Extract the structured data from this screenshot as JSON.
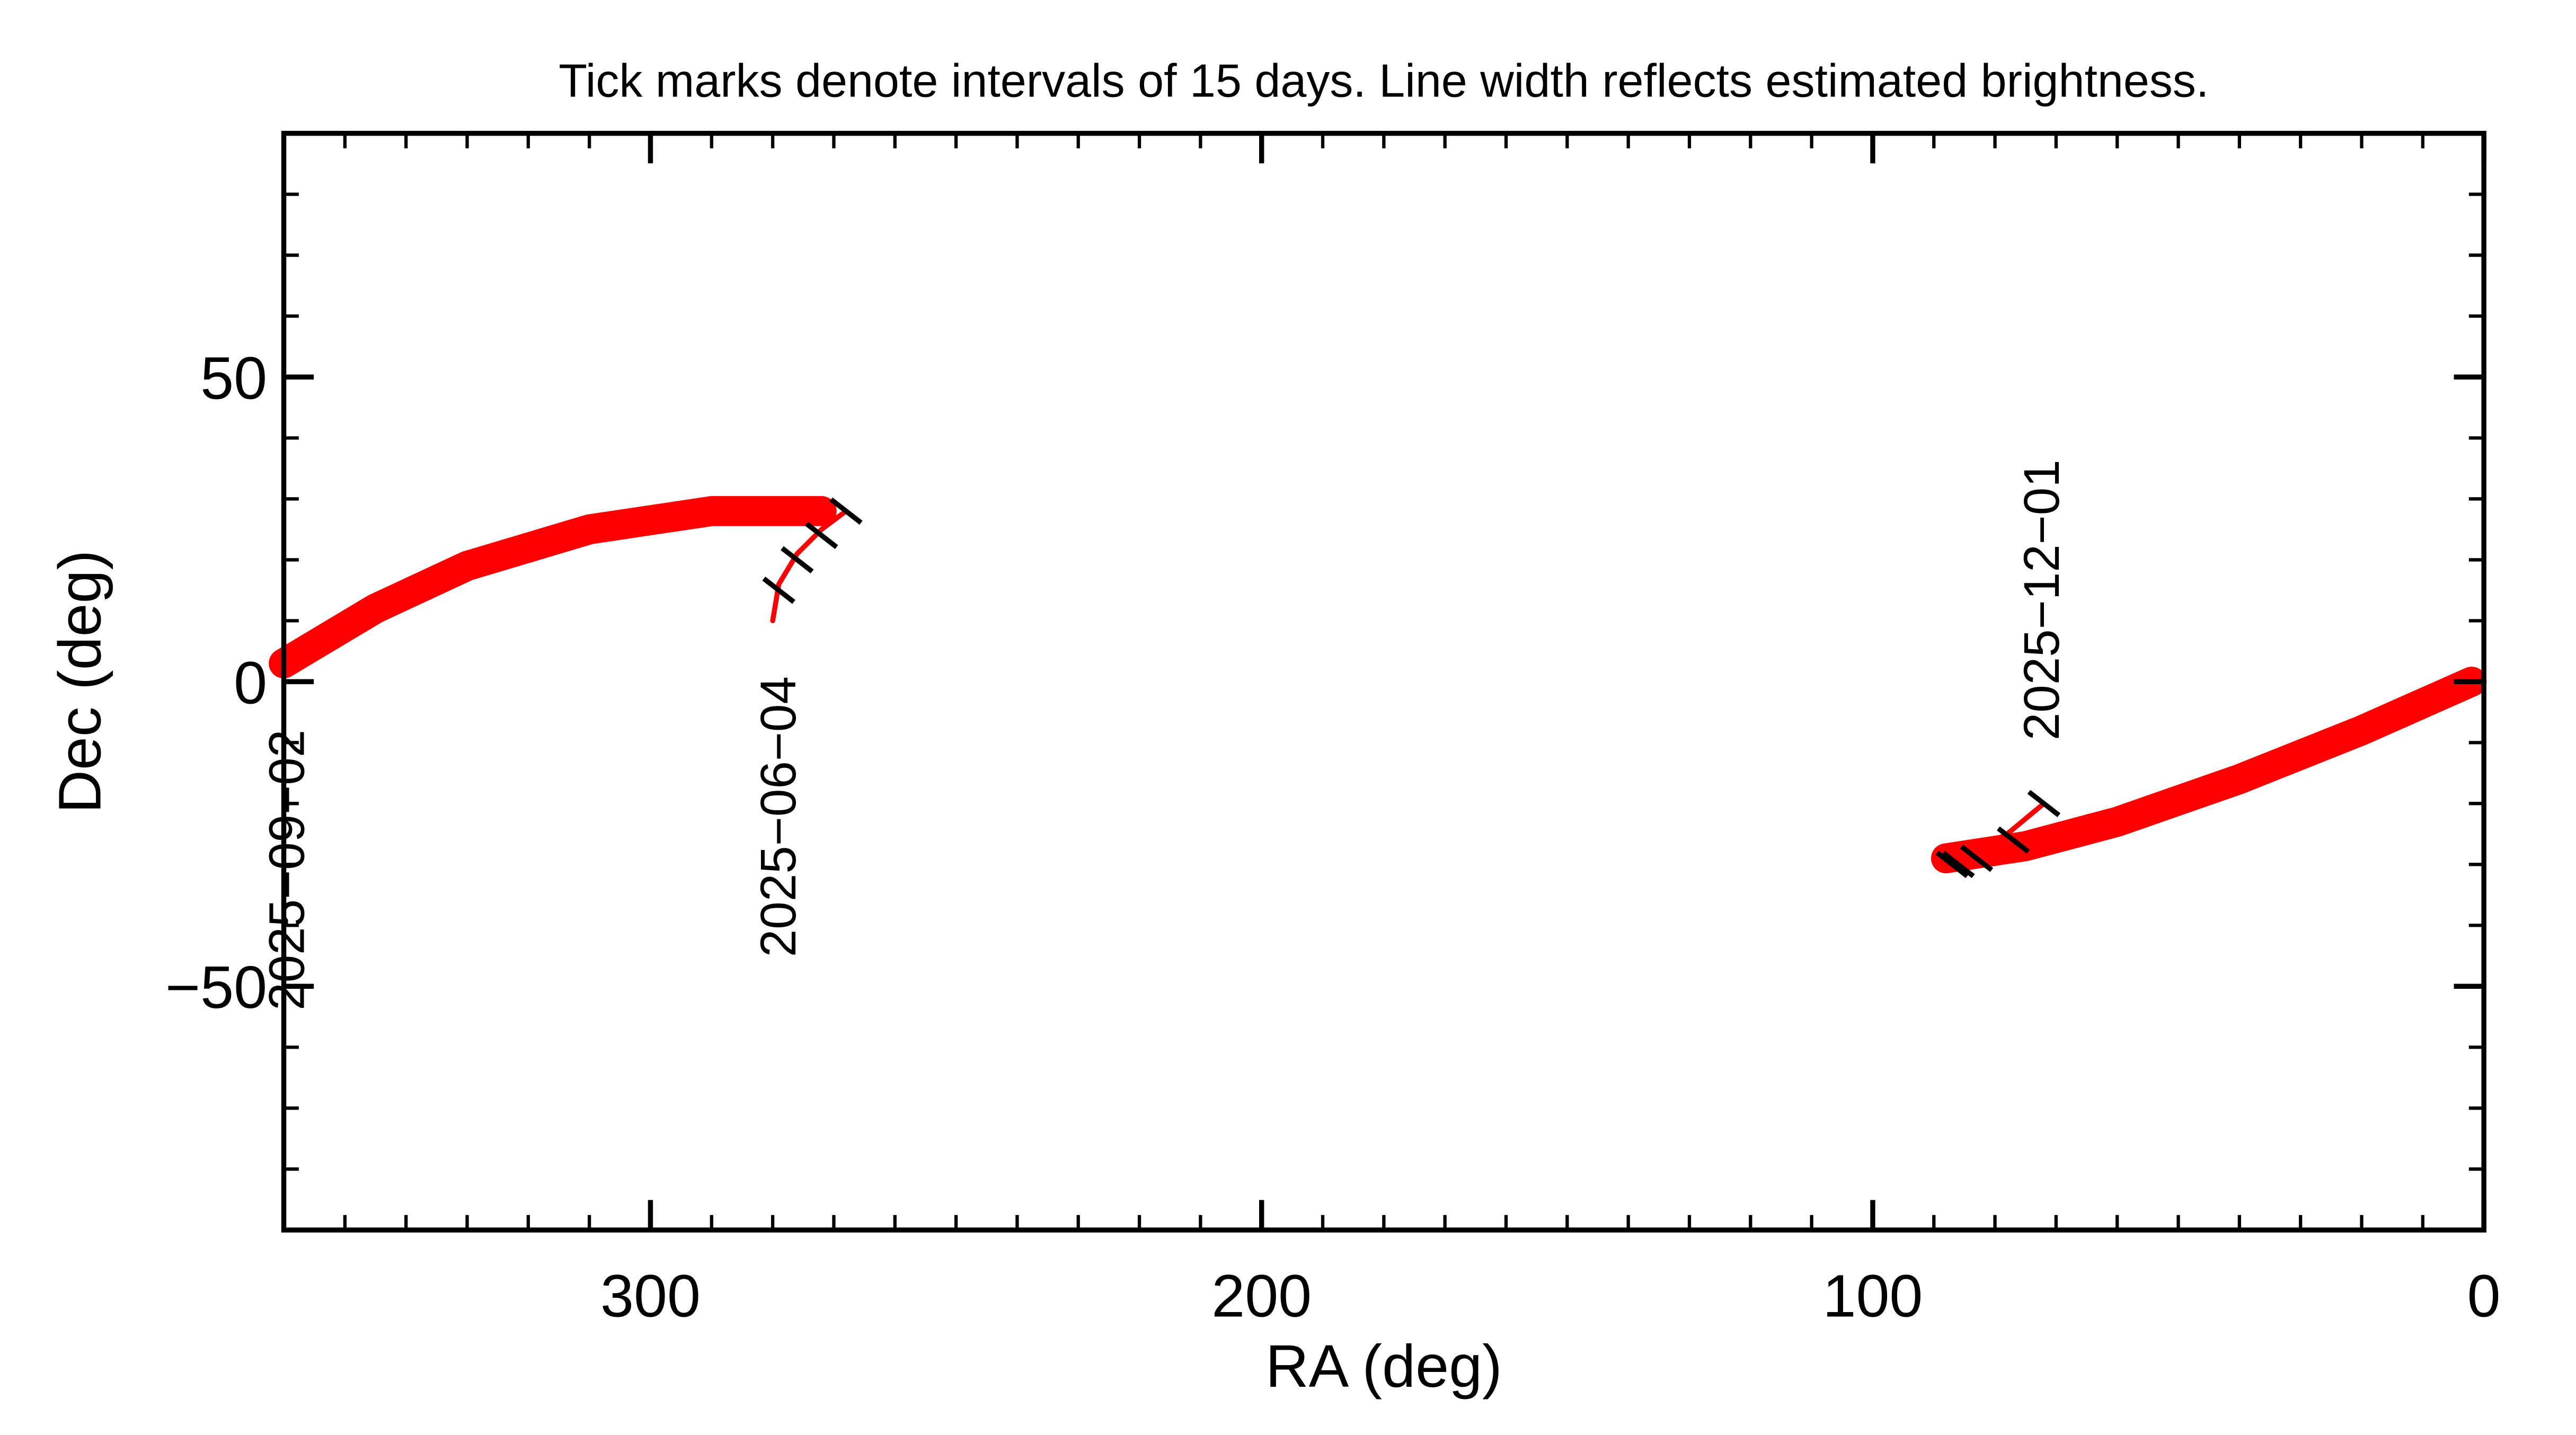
{
  "chart_data": {
    "type": "line",
    "title": "Tick marks denote intervals of 15 days.  Line width reflects estimated brightness.",
    "x_label": "RA (deg)",
    "y_label": "Dec (deg)",
    "xlim": [
      360,
      0
    ],
    "ylim": [
      -90,
      90
    ],
    "xticks": [
      300,
      200,
      100,
      0
    ],
    "yticks": [
      {
        "value": -50,
        "label": "−50"
      },
      0,
      50
    ],
    "xminorticks": [
      350,
      340,
      330,
      320,
      310,
      290,
      280,
      270,
      260,
      250,
      240,
      230,
      220,
      210,
      190,
      180,
      170,
      160,
      150,
      140,
      130,
      120,
      110,
      90,
      80,
      70,
      60,
      50,
      40,
      30,
      20,
      10
    ],
    "yminorticks": [
      -80,
      -70,
      -60,
      -40,
      -30,
      -20,
      -10,
      10,
      20,
      30,
      40,
      60,
      70,
      80
    ],
    "series": [
      {
        "color": "#ff0000",
        "linewidth": 3,
        "x": [
          280,
          279,
          276,
          272,
          268,
          null,
          88,
          84,
          78,
          72
        ],
        "y": [
          10,
          16,
          21,
          25,
          28,
          null,
          -29,
          -28,
          -25,
          -20
        ]
      },
      {
        "color": "#ff0000",
        "linewidth": 18,
        "x": [
          272,
          290,
          310,
          330,
          345,
          360,
          null,
          2,
          20,
          40,
          60,
          75,
          88
        ],
        "y": [
          28,
          28,
          25,
          19,
          12,
          3,
          null,
          0,
          -8,
          -16,
          -23,
          -27,
          -29
        ]
      }
    ],
    "time_marks": {
      "x": [
        279,
        276,
        272,
        268,
        87,
        86,
        83,
        77,
        72
      ],
      "y": [
        15,
        20,
        24,
        28,
        -30,
        -30,
        -29,
        -26,
        -20
      ]
    },
    "annotations": [
      "2025−06−04",
      "2025−09−02",
      "2025−12−01"
    ]
  }
}
